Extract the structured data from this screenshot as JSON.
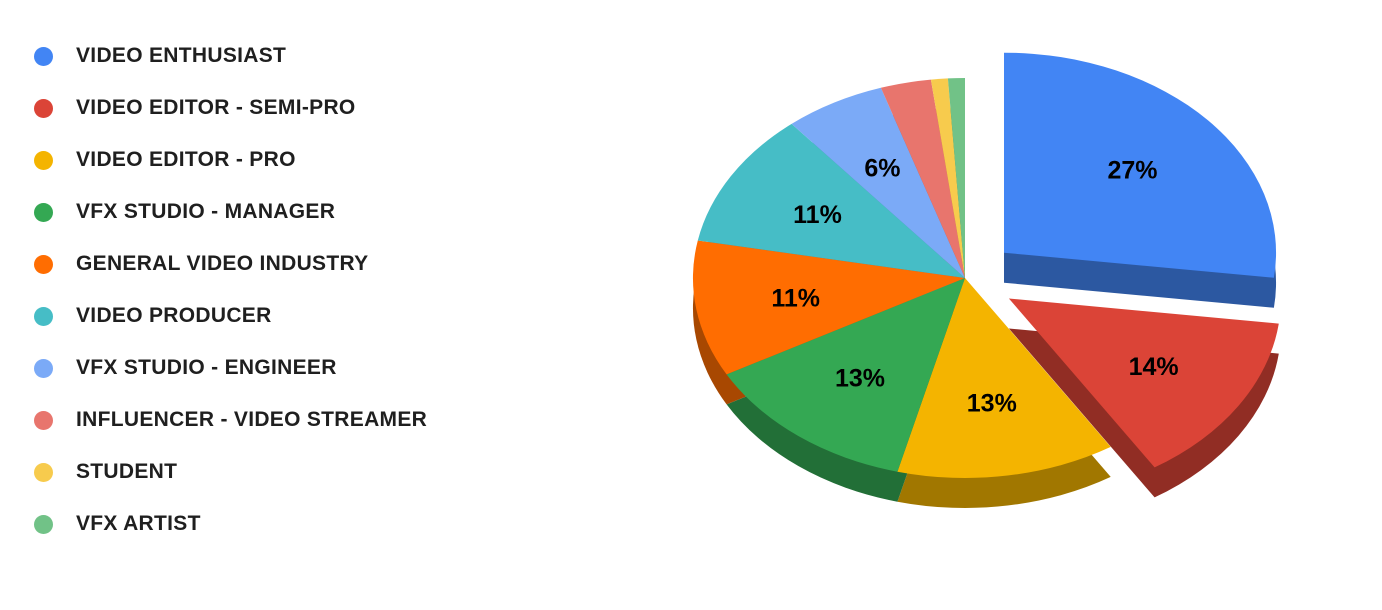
{
  "page": {
    "background_color": "#ffffff"
  },
  "chart_data": {
    "type": "pie",
    "style": "3d-exploded",
    "title": "",
    "legend_position": "left",
    "direction": "clockwise",
    "start_angle_deg": 0,
    "total": 100,
    "labels": [
      "VIDEO ENTHUSIAST",
      "VIDEO EDITOR - SEMI-PRO",
      "VIDEO EDITOR - PRO",
      "VFX STUDIO - MANAGER",
      "GENERAL VIDEO INDUSTRY",
      "VIDEO PRODUCER",
      "VFX STUDIO - ENGINEER",
      "INFLUENCER - VIDEO STREAMER",
      "STUDENT",
      "VFX ARTIST"
    ],
    "values": [
      27,
      14,
      13,
      13,
      11,
      11,
      6,
      3,
      1,
      1
    ],
    "displayed_percent_labels": [
      "27%",
      "14%",
      "13%",
      "13%",
      "11%",
      "11%",
      "6%"
    ],
    "colors": [
      "#4285F4",
      "#DB4437",
      "#F4B400",
      "#34A853",
      "#FF6D01",
      "#46BDC6",
      "#7BAAF7",
      "#E8756D",
      "#F7CB4D",
      "#71C287"
    ],
    "exploded_slices": [
      0,
      1
    ],
    "label_suffix": "%",
    "show_label_min_value": 6
  }
}
